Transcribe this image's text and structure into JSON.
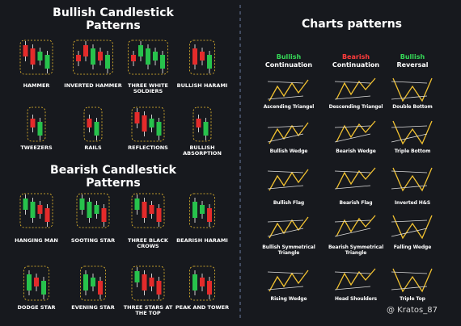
{
  "bullish_candles": {
    "title": "Bullish Candlestick Patterns",
    "items": [
      "HAMMER",
      "INVERTED HAMMER",
      "THREE WHITE SOLDIERS",
      "BULLISH HARAMI",
      "TWEEZERS",
      "RAILS",
      "REFLECTIONS",
      "BULLISH ABSORPTION"
    ]
  },
  "bearish_candles": {
    "title": "Bearish Candlestick Patterns",
    "items": [
      "HANGING MAN",
      "SOOTING STAR",
      "THREE BLACK CROWS",
      "BEARISH HARAMI",
      "DODGE STAR",
      "EVENING STAR",
      "THREE STARS AT THE TOP",
      "PEAK AND TOWER"
    ]
  },
  "chart_patterns": {
    "title": "Charts patterns",
    "columns": [
      {
        "tag": "Bullish",
        "label": "Continuation"
      },
      {
        "tag": "Bearish",
        "label": "Continuation"
      },
      {
        "tag": "Bullish",
        "label": "Reversal"
      }
    ],
    "items": [
      "Ascending Triangel",
      "Descending Triangel",
      "Double Bottom",
      "Bullish Wedge",
      "Bearish Wedge",
      "Triple Bottom",
      "Bullish Flag",
      "Bearish Flag",
      "Inverted H&S",
      "Bullish Symmetrical Triangle",
      "Bearish Symmetrical Triangle",
      "Falling Wedge",
      "Rising Wedge",
      "Head Shoulders",
      "Triple Top"
    ]
  },
  "watermark": "@ Kratos_87"
}
